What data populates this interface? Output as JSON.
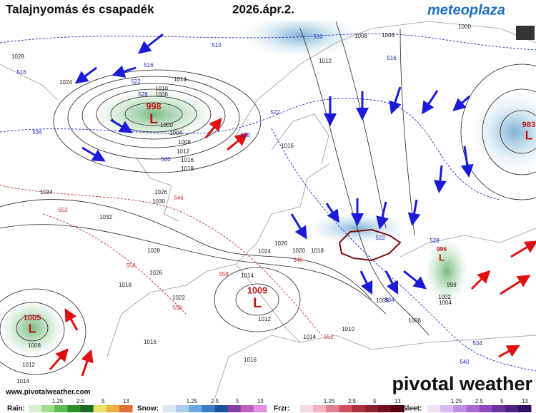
{
  "header": {
    "title": "Talajnyomás és csapadék",
    "date": "2026.ápr.2.",
    "logo": "meteoplaza"
  },
  "lows": [
    {
      "pressure": "998",
      "symbol": "L"
    },
    {
      "pressure": "1009",
      "symbol": "L"
    },
    {
      "pressure": "1005",
      "symbol": "L"
    },
    {
      "pressure": "983",
      "symbol": "L"
    },
    {
      "pressure": "996",
      "symbol": "L"
    }
  ],
  "isobar_labels": [
    "1028",
    "1024",
    "1034",
    "1032",
    "1028",
    "1026",
    "1018",
    "1022",
    "1016",
    "1012",
    "1008",
    "1014",
    "1014",
    "1010",
    "1012",
    "1018",
    "1020",
    "1024",
    "1026",
    "1014",
    "1008",
    "1004",
    "998",
    "1002",
    "1006",
    "1016",
    "1012",
    "1008",
    "1006",
    "1000",
    "1016",
    "1014",
    "1004",
    "1008",
    "1012",
    "1016",
    "1018",
    "1026",
    "1030",
    "1010",
    "1006",
    "1000"
  ],
  "thickness_labels_blue": [
    "510",
    "516",
    "522",
    "528",
    "534",
    "540",
    "516",
    "510",
    "516",
    "522",
    "528",
    "522",
    "528",
    "534",
    "540",
    "534"
  ],
  "thickness_labels_red": [
    "546",
    "552",
    "558",
    "558",
    "552",
    "558",
    "546"
  ],
  "credit": "www.pivotalweather.com",
  "brand": "pivotal weather",
  "legend": [
    {
      "label": "Rain:",
      "ticks": [
        "1.25",
        "2.5",
        "5",
        "13"
      ]
    },
    {
      "label": "Snow:",
      "ticks": [
        "1.25",
        "2.5",
        "5",
        "13"
      ]
    },
    {
      "label": "Frzr:",
      "ticks": [
        "1.25",
        "2.5",
        "5",
        "13"
      ]
    },
    {
      "label": "Sleet:",
      "ticks": [
        "1.25",
        "2.5",
        "5",
        "13"
      ]
    }
  ]
}
